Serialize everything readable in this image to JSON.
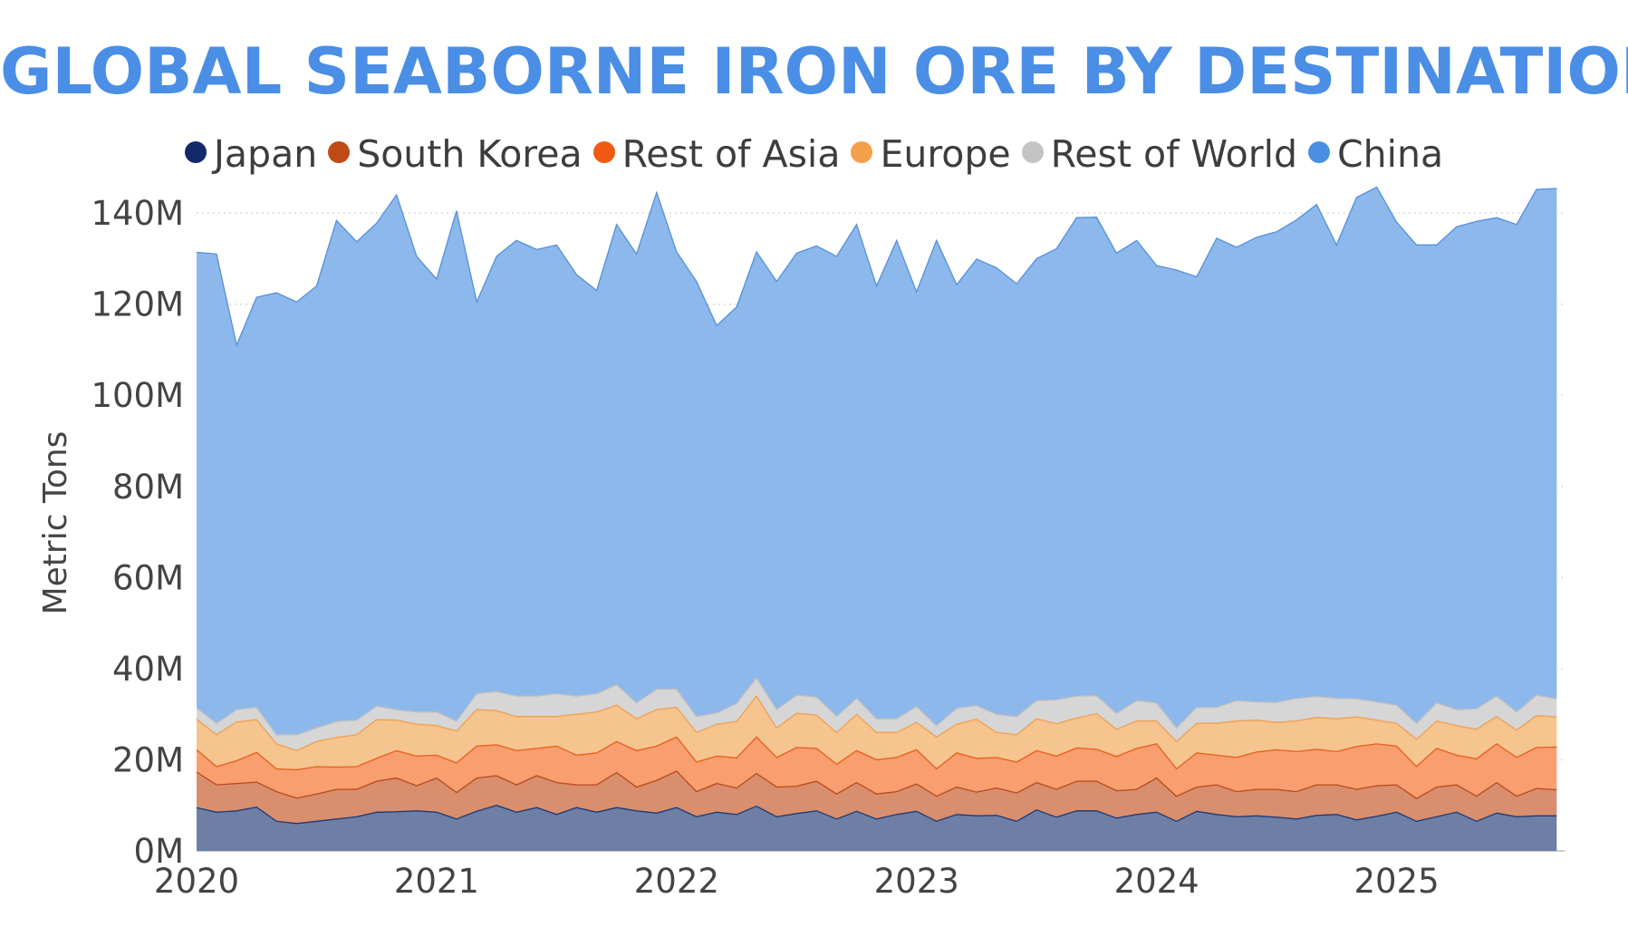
{
  "chart_data": {
    "type": "area",
    "stacked": true,
    "title": "GLOBAL SEABORNE IRON ORE BY DESTINATION",
    "ylabel": "Metric Tons",
    "xlabel": "",
    "ylim": [
      0,
      145
    ],
    "y_unit": "M",
    "y_ticks": [
      0,
      20,
      40,
      60,
      80,
      100,
      120,
      140
    ],
    "x_ticks": [
      "2020",
      "2021",
      "2022",
      "2023",
      "2024",
      "2025"
    ],
    "x_tick_values": [
      2020,
      2021,
      2022,
      2023,
      2024,
      2025
    ],
    "x_range": [
      2020,
      2025.7
    ],
    "legend_position": "top",
    "grid": "horizontal-dotted",
    "x": [
      2020.0,
      2020.083,
      2020.167,
      2020.25,
      2020.333,
      2020.417,
      2020.5,
      2020.583,
      2020.667,
      2020.75,
      2020.833,
      2020.917,
      2021.0,
      2021.083,
      2021.167,
      2021.25,
      2021.333,
      2021.417,
      2021.5,
      2021.583,
      2021.667,
      2021.75,
      2021.833,
      2021.917,
      2022.0,
      2022.083,
      2022.167,
      2022.25,
      2022.333,
      2022.417,
      2022.5,
      2022.583,
      2022.667,
      2022.75,
      2022.833,
      2022.917,
      2023.0,
      2023.083,
      2023.167,
      2023.25,
      2023.333,
      2023.417,
      2023.5,
      2023.583,
      2023.667,
      2023.75,
      2023.833,
      2023.917,
      2024.0,
      2024.083,
      2024.167,
      2024.25,
      2024.333,
      2024.417,
      2024.5,
      2024.583,
      2024.667,
      2024.75,
      2024.833,
      2024.917,
      2025.0,
      2025.083,
      2025.167,
      2025.25,
      2025.333,
      2025.417,
      2025.5,
      2025.583,
      2025.667
    ],
    "series": [
      {
        "name": "Japan",
        "color": "#6e7fa6",
        "line": "#1f3a73",
        "legend_color": "#12296b",
        "values": [
          9.5,
          8.5,
          8.8,
          9.6,
          6.5,
          6.0,
          6.5,
          7.0,
          7.5,
          8.5,
          8.6,
          8.8,
          8.5,
          7.0,
          8.7,
          10.0,
          8.5,
          9.5,
          8.0,
          9.5,
          8.5,
          9.5,
          8.8,
          8.3,
          9.5,
          7.5,
          8.5,
          8.0,
          9.8,
          7.5,
          8.2,
          8.8,
          7.0,
          8.7,
          7.0,
          8.0,
          8.7,
          6.5,
          8.0,
          7.7,
          7.8,
          6.5,
          9.0,
          7.4,
          8.8,
          8.8,
          7.2,
          8.0,
          8.5,
          6.5,
          8.7,
          8.0,
          7.5,
          7.7,
          7.4,
          7.0,
          7.8,
          8.0,
          6.8,
          7.6,
          8.5,
          6.5,
          7.5,
          8.5,
          6.5,
          8.3,
          7.5,
          7.7,
          7.7
        ]
      },
      {
        "name": "South Korea",
        "color": "#d98e6e",
        "line": "#b84a1c",
        "legend_color": "#c04a15",
        "values": [
          7.8,
          6.0,
          6.0,
          5.5,
          6.5,
          5.6,
          6.0,
          6.5,
          6.0,
          6.8,
          7.4,
          5.5,
          7.5,
          5.8,
          7.3,
          6.5,
          6.0,
          7.0,
          7.0,
          5.0,
          6.0,
          7.7,
          5.2,
          7.2,
          8.0,
          5.5,
          6.3,
          5.8,
          7.2,
          6.5,
          6.0,
          6.5,
          5.5,
          6.3,
          5.5,
          5.0,
          6.0,
          5.5,
          6.0,
          5.2,
          6.0,
          6.2,
          6.0,
          6.1,
          6.5,
          6.5,
          6.0,
          5.5,
          7.5,
          5.5,
          5.3,
          6.5,
          5.5,
          5.8,
          6.1,
          6.0,
          6.7,
          6.5,
          6.7,
          6.7,
          6.0,
          5.0,
          6.5,
          6.0,
          5.5,
          6.7,
          4.5,
          6.0,
          5.7
        ]
      },
      {
        "name": "Rest of Asia",
        "color": "#f99e6f",
        "line": "#e85d1b",
        "legend_color": "#f05a12",
        "values": [
          4.9,
          4.0,
          5.0,
          6.5,
          5.0,
          6.2,
          6.0,
          4.9,
          5.0,
          5.0,
          6.0,
          6.5,
          5.0,
          6.5,
          7.0,
          6.8,
          7.5,
          6.0,
          8.0,
          6.5,
          7.0,
          6.8,
          8.0,
          7.5,
          7.5,
          6.5,
          6.0,
          6.6,
          8.0,
          6.5,
          8.5,
          7.2,
          6.5,
          7.0,
          7.5,
          7.5,
          7.5,
          6.0,
          7.5,
          7.4,
          6.7,
          6.8,
          7.0,
          7.3,
          7.3,
          7.0,
          7.5,
          9.0,
          7.5,
          6.0,
          7.5,
          6.5,
          7.5,
          8.2,
          8.7,
          8.8,
          7.8,
          7.3,
          9.4,
          9.2,
          8.5,
          7.0,
          8.5,
          6.5,
          8.2,
          8.5,
          8.5,
          9.0,
          9.4
        ]
      },
      {
        "name": "Europe",
        "color": "#f5c48f",
        "line": "#f0a050",
        "legend_color": "#f5a04a",
        "values": [
          6.7,
          7.0,
          8.5,
          7.2,
          5.5,
          4.2,
          5.5,
          6.5,
          7.0,
          8.5,
          6.7,
          7.0,
          6.5,
          7.0,
          8.0,
          7.5,
          7.5,
          7.0,
          6.5,
          9.0,
          9.0,
          8.0,
          7.0,
          8.0,
          6.5,
          6.5,
          7.0,
          8.0,
          9.0,
          6.5,
          7.5,
          7.3,
          7.0,
          8.0,
          6.0,
          5.5,
          6.0,
          7.0,
          6.3,
          8.6,
          5.5,
          6.0,
          7.0,
          7.1,
          6.6,
          7.8,
          6.0,
          6.0,
          5.0,
          6.0,
          6.5,
          7.0,
          8.0,
          7.0,
          6.0,
          6.7,
          7.0,
          7.2,
          6.5,
          5.2,
          5.0,
          6.0,
          6.0,
          6.5,
          6.5,
          6.0,
          6.0,
          7.0,
          6.6
        ]
      },
      {
        "name": "Rest of World",
        "color": "#d6d6d6",
        "line": "#bdbdbd",
        "legend_color": "#c4c4c4",
        "values": [
          2.5,
          2.5,
          2.7,
          2.7,
          2.0,
          3.5,
          3.0,
          3.5,
          3.2,
          3.0,
          2.3,
          2.7,
          3.0,
          2.2,
          3.5,
          4.2,
          4.5,
          4.5,
          5.0,
          4.0,
          4.0,
          4.5,
          3.5,
          4.5,
          4.0,
          3.5,
          2.5,
          4.0,
          4.0,
          4.0,
          4.0,
          4.0,
          3.5,
          3.5,
          3.0,
          3.0,
          3.5,
          2.5,
          3.5,
          3.0,
          4.0,
          4.0,
          4.0,
          5.3,
          4.8,
          4.0,
          3.5,
          4.5,
          4.0,
          3.0,
          3.5,
          3.5,
          4.5,
          4.0,
          4.4,
          5.0,
          4.6,
          4.5,
          4.0,
          4.0,
          4.0,
          3.5,
          4.0,
          3.5,
          4.5,
          4.5,
          4.0,
          4.5,
          4.0
        ]
      },
      {
        "name": "China",
        "color": "#8cb8ec",
        "line": "#5590db",
        "legend_color": "#4a8ee6",
        "values": [
          100.0,
          103.0,
          80.0,
          90.0,
          97.0,
          95.0,
          97.0,
          110.0,
          105.0,
          106.0,
          113.0,
          100.0,
          95.0,
          112.0,
          86.0,
          95.5,
          100.0,
          98.0,
          98.5,
          92.5,
          88.5,
          101.0,
          98.5,
          109.0,
          96.0,
          95.5,
          85.0,
          87.0,
          93.5,
          94.0,
          97.0,
          99.0,
          101.0,
          104.0,
          95.0,
          105.0,
          91.0,
          106.5,
          93.0,
          98.0,
          98.0,
          95.0,
          97.0,
          99.0,
          105.0,
          105.0,
          101.0,
          101.0,
          96.0,
          100.5,
          94.5,
          103.0,
          99.5,
          102.0,
          103.3,
          105.0,
          108.0,
          99.5,
          110.0,
          113.0,
          106.0,
          105.0,
          100.5,
          106.0,
          107.0,
          105.0,
          107.0,
          111.0,
          112.0
        ]
      }
    ]
  }
}
